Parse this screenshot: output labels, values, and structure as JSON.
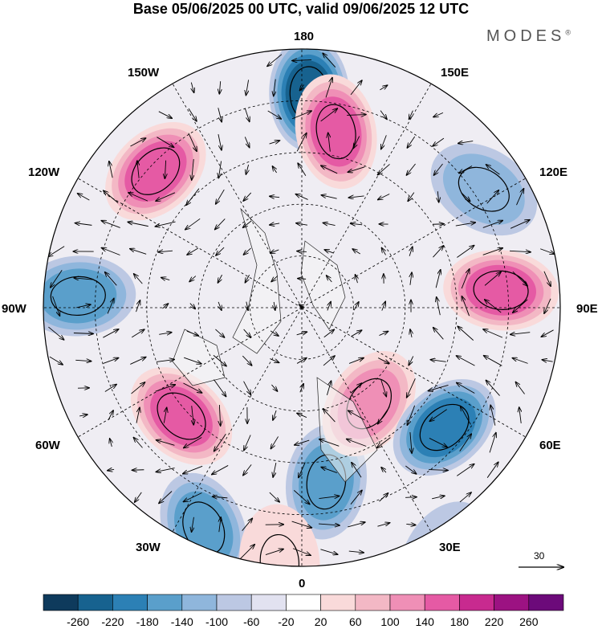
{
  "title": "Base 05/06/2025 00 UTC, valid 09/06/2025 12 UTC",
  "logo": "MODES",
  "logo_mark": "®",
  "longitude_labels": {
    "top": "180",
    "top_left": "150W",
    "top_right": "150E",
    "upper_left": "120W",
    "upper_right": "120E",
    "left": "90W",
    "right": "90E",
    "lower_left": "60W",
    "lower_right": "60E",
    "bottom_left": "30W",
    "bottom_right": "30E",
    "bottom": "0"
  },
  "reference_vector_label": "30",
  "colorbar": {
    "colors": [
      "#0e3a5c",
      "#17628f",
      "#2c80b5",
      "#5a9fcb",
      "#8fb6dc",
      "#bcc8e3",
      "#e2e2f0",
      "#ffffff",
      "#f9dada",
      "#f3b8c5",
      "#ef8fb6",
      "#e55aa4",
      "#c82a8f",
      "#9c1282",
      "#6c0a7a"
    ],
    "tick_labels": [
      "-260",
      "-220",
      "-180",
      "-140",
      "-100",
      "-60",
      "-20",
      "20",
      "60",
      "100",
      "140",
      "180",
      "220",
      "260"
    ]
  },
  "anomaly_centers": [
    {
      "lon_deg": 178,
      "colat_deg": 62,
      "value": -200
    },
    {
      "lon_deg": 169,
      "colat_deg": 52,
      "value": 190
    },
    {
      "lon_deg": 227,
      "colat_deg": 58,
      "value": 170
    },
    {
      "lon_deg": 267,
      "colat_deg": 65,
      "value": -150
    },
    {
      "lon_deg": 312,
      "colat_deg": 47,
      "value": 160
    },
    {
      "lon_deg": 336,
      "colat_deg": 70,
      "value": -130
    },
    {
      "lon_deg": 8,
      "colat_deg": 51,
      "value": -150
    },
    {
      "lon_deg": 35,
      "colat_deg": 34,
      "value": 130
    },
    {
      "lon_deg": 50,
      "colat_deg": 54,
      "value": -190
    },
    {
      "lon_deg": 95,
      "colat_deg": 58,
      "value": 190
    },
    {
      "lon_deg": 123,
      "colat_deg": 63,
      "value": -110
    },
    {
      "lon_deg": 355,
      "colat_deg": 74,
      "value": 60
    },
    {
      "lon_deg": 30,
      "colat_deg": 83,
      "value": -60
    }
  ]
}
